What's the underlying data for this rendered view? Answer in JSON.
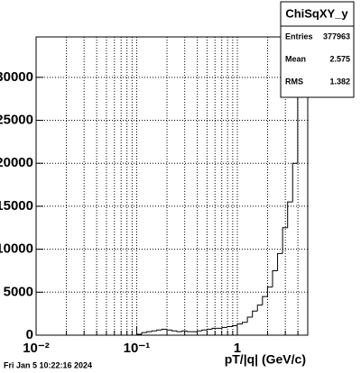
{
  "chart_data": {
    "type": "histogram",
    "title": "ChiSqXY_y",
    "xlabel": "pT/|q| (GeV/c)",
    "stats": [
      {
        "label": "Entries",
        "value": "377963"
      },
      {
        "label": "Mean",
        "value": "2.575"
      },
      {
        "label": "RMS",
        "value": "1.382"
      }
    ],
    "footer": "Fri Jan  5 10:22:16 2024",
    "log_x": true,
    "grid": true,
    "color": "#000000",
    "xlim": [
      0.01,
      5.012
    ],
    "ylim": [
      0,
      34700
    ],
    "xticks": [
      {
        "value": 0.01,
        "label": "10⁻²"
      },
      {
        "value": 0.1,
        "label": "10⁻¹"
      },
      1
    ],
    "xminorticks": [
      0.02,
      0.03,
      0.04,
      0.05,
      0.06,
      0.07,
      0.08,
      0.09,
      0.2,
      0.3,
      0.4,
      0.5,
      0.6,
      0.7,
      0.8,
      0.9,
      2,
      3,
      4
    ],
    "yticks": [
      0,
      5000,
      10000,
      15000,
      20000,
      25000,
      30000
    ],
    "bins": [
      0.01,
      0.01122,
      0.01259,
      0.01413,
      0.01585,
      0.01778,
      0.01995,
      0.02239,
      0.02512,
      0.02818,
      0.03162,
      0.03548,
      0.03981,
      0.04467,
      0.05012,
      0.05623,
      0.0631,
      0.07079,
      0.07943,
      0.08913,
      0.1,
      0.1122,
      0.1259,
      0.1413,
      0.1585,
      0.1778,
      0.1995,
      0.2239,
      0.2512,
      0.2818,
      0.3162,
      0.3548,
      0.3981,
      0.4467,
      0.5012,
      0.5623,
      0.631,
      0.7079,
      0.7943,
      0.8913,
      1,
      1.122,
      1.259,
      1.413,
      1.585,
      1.778,
      1.995,
      2.239,
      2.512,
      2.818,
      3.162,
      3.548,
      3.981,
      4.467,
      5.012
    ],
    "values": [
      0,
      0,
      0,
      0,
      0,
      0,
      0,
      0,
      0,
      0,
      0,
      0,
      0,
      0,
      0,
      0,
      0,
      0,
      0,
      0,
      100,
      300,
      400,
      500,
      600,
      700,
      600,
      500,
      400,
      500,
      400,
      400,
      500,
      600,
      700,
      800,
      800,
      900,
      1000,
      1100,
      1300,
      1500,
      2100,
      2800,
      3500,
      4500,
      5600,
      7500,
      9500,
      12500,
      15500,
      20000,
      28500,
      36000
    ]
  }
}
